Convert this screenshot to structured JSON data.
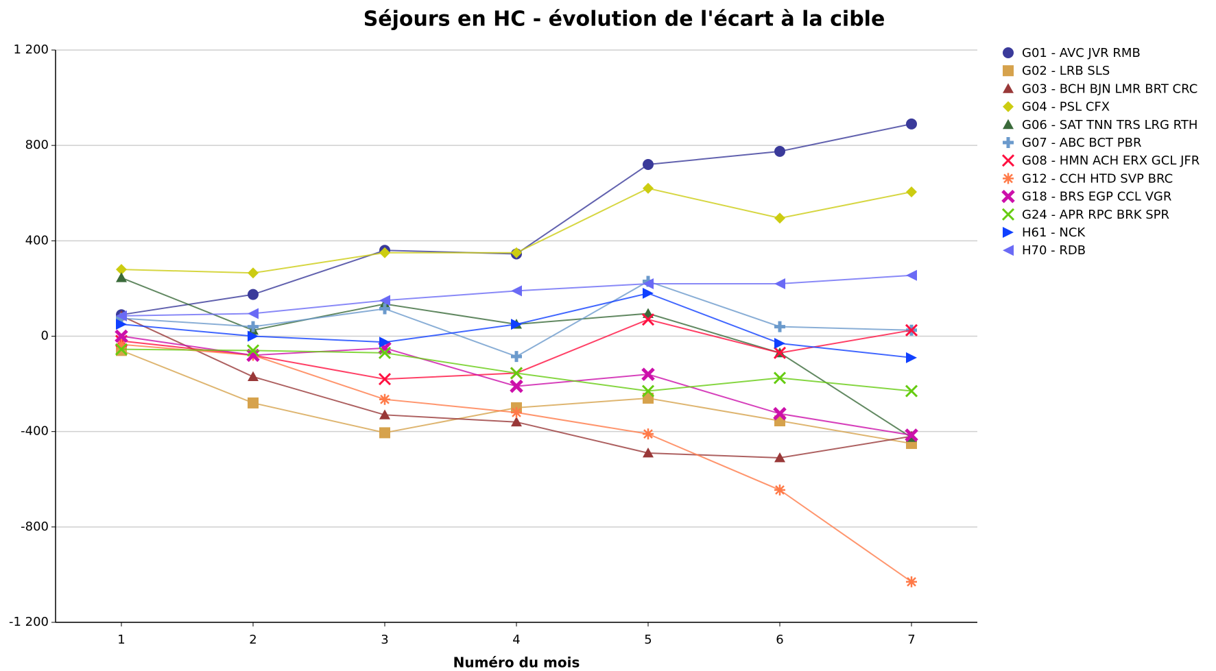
{
  "chart_data": {
    "type": "line",
    "title": "Séjours en HC - évolution de l'écart à la cible",
    "xlabel": "Numéro du mois",
    "x": [
      1,
      2,
      3,
      4,
      5,
      6,
      7
    ],
    "xlim": [
      0.5,
      7.5
    ],
    "xticks": [
      1,
      2,
      3,
      4,
      5,
      6,
      7
    ],
    "ylim": [
      -1200,
      1200
    ],
    "yticks": [
      {
        "value": -1200,
        "label": "-1 200"
      },
      -800,
      -400,
      0,
      400,
      800,
      {
        "value": 1200,
        "label": "1 200"
      }
    ],
    "grid": true,
    "legend": "right",
    "series": [
      {
        "name": "G01 - AVC JVR RMB",
        "color": "#3a3a9a",
        "marker": "circle",
        "values": [
          90,
          175,
          360,
          345,
          720,
          775,
          890
        ]
      },
      {
        "name": "G02 - LRB SLS",
        "color": "#d6a24c",
        "marker": "square",
        "values": [
          -60,
          -280,
          -405,
          -300,
          -260,
          -355,
          -450
        ]
      },
      {
        "name": "G03 - BCH BJN LMR BRT CRC",
        "color": "#993838",
        "marker": "triangle",
        "values": [
          85,
          -170,
          -330,
          -360,
          -490,
          -510,
          -420
        ]
      },
      {
        "name": "G04 - PSL CFX",
        "color": "#cccc11",
        "marker": "diamond",
        "values": [
          280,
          265,
          350,
          350,
          620,
          495,
          605
        ]
      },
      {
        "name": "G06 - SAT TNN TRS LRG RTH",
        "color": "#3a6a3a",
        "marker": "triangle",
        "values": [
          245,
          25,
          135,
          50,
          95,
          -70,
          -425
        ]
      },
      {
        "name": "G07 - ABC BCT PBR",
        "color": "#6b9acc",
        "marker": "plus",
        "values": [
          75,
          40,
          115,
          -85,
          230,
          40,
          25
        ]
      },
      {
        "name": "G08 - HMN ACH ERX GCL JFR",
        "color": "#ff1040",
        "marker": "x",
        "values": [
          -20,
          -80,
          -180,
          -155,
          70,
          -70,
          25
        ]
      },
      {
        "name": "G12 - CCH HTD SVP BRC",
        "color": "#ff7a48",
        "marker": "asterisk",
        "values": [
          -35,
          -80,
          -265,
          -320,
          -410,
          -645,
          -1030
        ]
      },
      {
        "name": "G18 - BRS EGP CCL VGR",
        "color": "#cc10aa",
        "marker": "xbold",
        "values": [
          0,
          -80,
          -50,
          -210,
          -160,
          -325,
          -415
        ]
      },
      {
        "name": "G24 - APR RPC BRK SPR",
        "color": "#66cc11",
        "marker": "x",
        "values": [
          -55,
          -60,
          -70,
          -155,
          -230,
          -175,
          -230
        ]
      },
      {
        "name": "H61 - NCK",
        "color": "#1040ff",
        "marker": "right",
        "values": [
          50,
          0,
          -25,
          50,
          180,
          -30,
          -90
        ]
      },
      {
        "name": "H70 - RDB",
        "color": "#6a6af5",
        "marker": "left",
        "values": [
          85,
          95,
          150,
          190,
          220,
          220,
          255
        ]
      }
    ]
  }
}
